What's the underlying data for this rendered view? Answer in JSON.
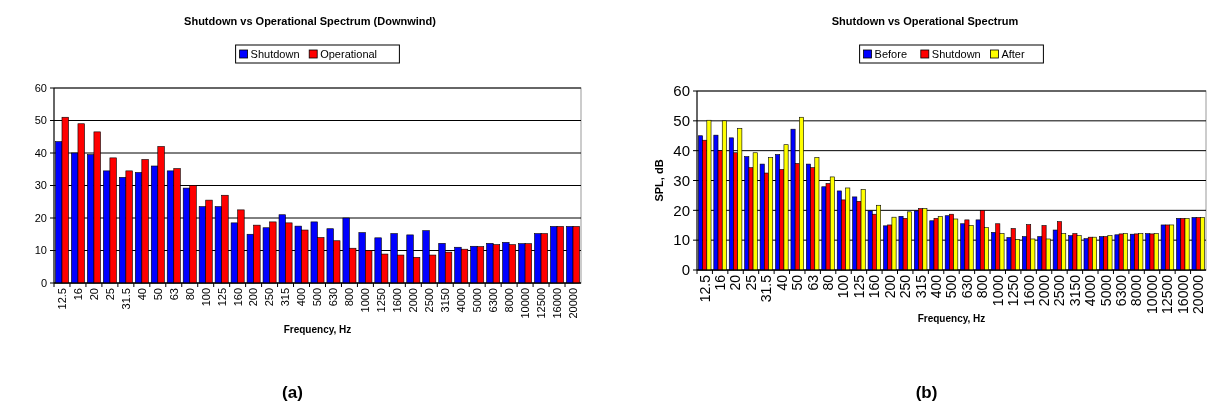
{
  "chart_data": [
    {
      "type": "bar",
      "title": "Shutdown vs Operational Spectrum (Downwind)",
      "xlabel": "Frequency, Hz",
      "categories": [
        "12.5",
        "16",
        "20",
        "25",
        "31.5",
        "40",
        "50",
        "63",
        "80",
        "100",
        "125",
        "160",
        "200",
        "250",
        "315",
        "400",
        "500",
        "630",
        "800",
        "1000",
        "1250",
        "1600",
        "2000",
        "2500",
        "3150",
        "4000",
        "5000",
        "6300",
        "8000",
        "10000",
        "12500",
        "16000",
        "20000"
      ],
      "series": [
        {
          "name": "Shutdown",
          "color": "#0000ff",
          "values": [
            43.5,
            40,
            39.5,
            34.5,
            32.5,
            34,
            36,
            34.5,
            29.2,
            23.5,
            23.5,
            18.5,
            15,
            17,
            21,
            17.5,
            18.8,
            16.7,
            20,
            15.5,
            13.9,
            15.2,
            14.8,
            16.1,
            12.2,
            11,
            11.3,
            12.2,
            12.5,
            12.1,
            15.2,
            17.4,
            17.4
          ]
        },
        {
          "name": "Operational",
          "color": "#ff0000",
          "values": [
            51,
            49,
            46.5,
            38.5,
            34.5,
            38,
            42,
            35.2,
            30,
            25.5,
            27,
            22.5,
            17.8,
            18.8,
            18.5,
            16.3,
            14,
            13,
            10.7,
            10,
            8.9,
            8.6,
            7.9,
            8.6,
            9.5,
            10.4,
            11.2,
            11.8,
            11.8,
            12.1,
            15.2,
            17.4,
            17.4
          ]
        }
      ],
      "ylim": [
        0,
        60
      ],
      "yticks": [
        0,
        10,
        20,
        30,
        40,
        50,
        60
      ],
      "grid": "y",
      "legend": "top",
      "annotations": [
        "(a)"
      ]
    },
    {
      "type": "bar",
      "title": "Shutdown vs Operational Spectrum",
      "xlabel": "Frequency, Hz",
      "ylabel": "SPL, dB",
      "categories": [
        "12.5",
        "16",
        "20",
        "25",
        "31.5",
        "40",
        "50",
        "63",
        "80",
        "100",
        "125",
        "160",
        "200",
        "250",
        "315",
        "400",
        "500",
        "630",
        "800",
        "1000",
        "1250",
        "1600",
        "2000",
        "2500",
        "3150",
        "4000",
        "5000",
        "6300",
        "8000",
        "10000",
        "12500",
        "16000",
        "20000"
      ],
      "series": [
        {
          "name": "Before",
          "color": "#0000ff",
          "values": [
            45,
            45.2,
            44.3,
            38,
            35.5,
            38.7,
            47.2,
            35.5,
            27.9,
            26.5,
            24.5,
            19.8,
            14.8,
            18,
            19.8,
            16.5,
            18.2,
            15.5,
            16.8,
            12.6,
            10.9,
            11.2,
            11.2,
            13.4,
            11.5,
            10.5,
            11.2,
            11.8,
            12,
            12.2,
            15.1,
            17.3,
            17.6
          ]
        },
        {
          "name": "Shutdown",
          "color": "#ff0000",
          "values": [
            43.5,
            40,
            39.3,
            34.3,
            32.5,
            33.7,
            35.7,
            34.3,
            29,
            23.5,
            23,
            18.7,
            15.1,
            17.3,
            20.6,
            17.3,
            18.7,
            16.8,
            20,
            15.5,
            13.9,
            15.2,
            14.9,
            16.2,
            12.2,
            11,
            11.2,
            12.1,
            12.1,
            12.1,
            15.1,
            17.3,
            17.6
          ]
        },
        {
          "name": "After",
          "color": "#ffff00",
          "values": [
            50.2,
            50,
            47.5,
            39.3,
            37.7,
            42,
            51.2,
            37.7,
            31.2,
            27.5,
            27,
            21.7,
            17.7,
            19.5,
            20.6,
            17.9,
            17.1,
            14.9,
            14.2,
            12.2,
            10.2,
            10.4,
            10.4,
            12.2,
            11.5,
            11,
            11.5,
            12.2,
            12.2,
            12.2,
            15.1,
            17.3,
            17.6
          ]
        }
      ],
      "ylim": [
        0,
        60
      ],
      "yticks": [
        0,
        10,
        20,
        30,
        40,
        50,
        60
      ],
      "grid": "y",
      "legend": "top",
      "annotations": [
        "(b)"
      ]
    }
  ]
}
